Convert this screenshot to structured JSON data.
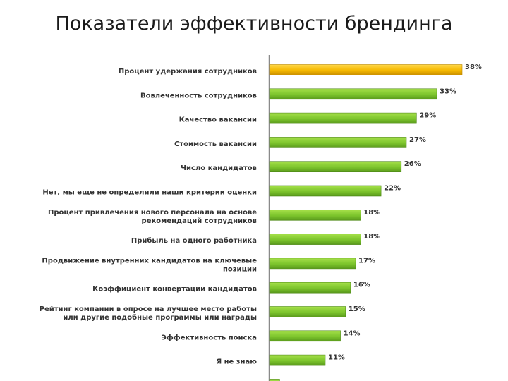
{
  "slide": {
    "title": "Показатели эффективности брендинга"
  },
  "chart_data": {
    "type": "bar",
    "orientation": "horizontal",
    "title": "",
    "xlabel": "",
    "ylabel": "",
    "xlim": [
      0,
      38
    ],
    "grid": false,
    "legend": "none",
    "colors": {
      "highlight": "#f5b800",
      "default": "#7cc42c"
    },
    "categories": [
      [
        "Процент удержания сотрудников"
      ],
      [
        "Вовлеченность сотрудников"
      ],
      [
        "Качество вакансии"
      ],
      [
        "Стоимость вакансии"
      ],
      [
        "Число кандидатов"
      ],
      [
        "Нет, мы еще не определили наши критерии оценки"
      ],
      [
        "Процент привлечения нового персонала на основе",
        "рекомендаций сотрудников"
      ],
      [
        "Прибыль на одного работника"
      ],
      [
        "Продвижение внутренних кандидатов на ключевые",
        "позиции"
      ],
      [
        "Коэффициент конвертации кандидатов"
      ],
      [
        "Рейтинг компании в опросе на лучшее место работы",
        "или другие подобные программы или награды"
      ],
      [
        "Эффективность поиска"
      ],
      [
        "Я не знаю"
      ],
      [
        ""
      ]
    ],
    "values": [
      38,
      33,
      29,
      27,
      26,
      22,
      18,
      18,
      17,
      16,
      15,
      14,
      11,
      2
    ],
    "value_labels": [
      "38%",
      "33%",
      "29%",
      "27%",
      "26%",
      "22%",
      "18%",
      "18%",
      "17%",
      "16%",
      "15%",
      "14%",
      "11%",
      ""
    ],
    "highlighted_index": 0
  }
}
